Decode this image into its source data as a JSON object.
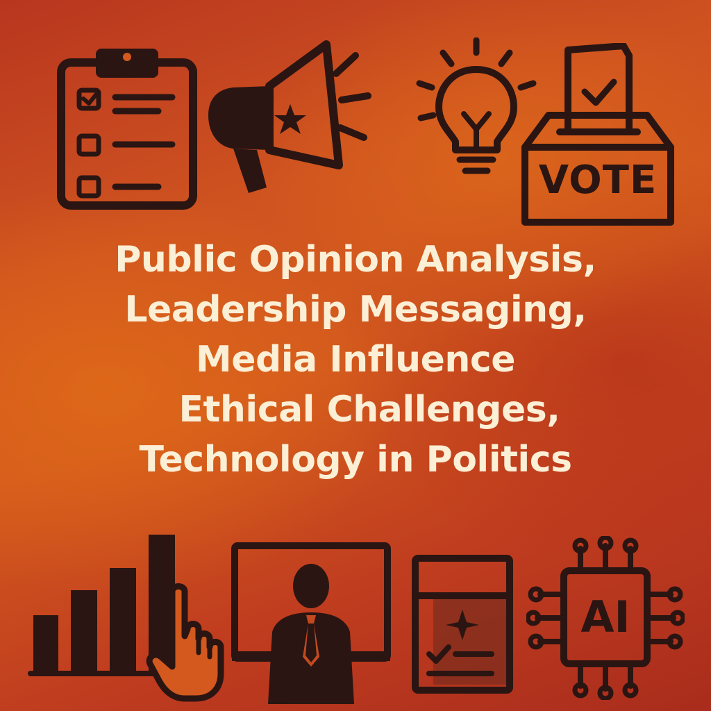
{
  "headline": {
    "lines": [
      "Public Opinion Analysis,",
      "Leadership Messaging,",
      "Media Influence",
      "Ethical Challenges,",
      "Technology in Politics"
    ]
  },
  "icons": {
    "top": [
      "clipboard-checklist-icon",
      "megaphone-icon",
      "lightbulb-icon",
      "ballot-box-icon"
    ],
    "bottom": [
      "bar-chart-icon",
      "pointing-hand-icon",
      "monitor-speaker-icon",
      "ballot-sheet-icon",
      "ai-chip-icon"
    ]
  },
  "ballot_box": {
    "label": "VOTE"
  },
  "ai_chip": {
    "label": "AI"
  },
  "colors": {
    "background_orange": "#d3591e",
    "background_red": "#b8361f",
    "ink": "#2a1512",
    "text": "#fbefd6"
  }
}
